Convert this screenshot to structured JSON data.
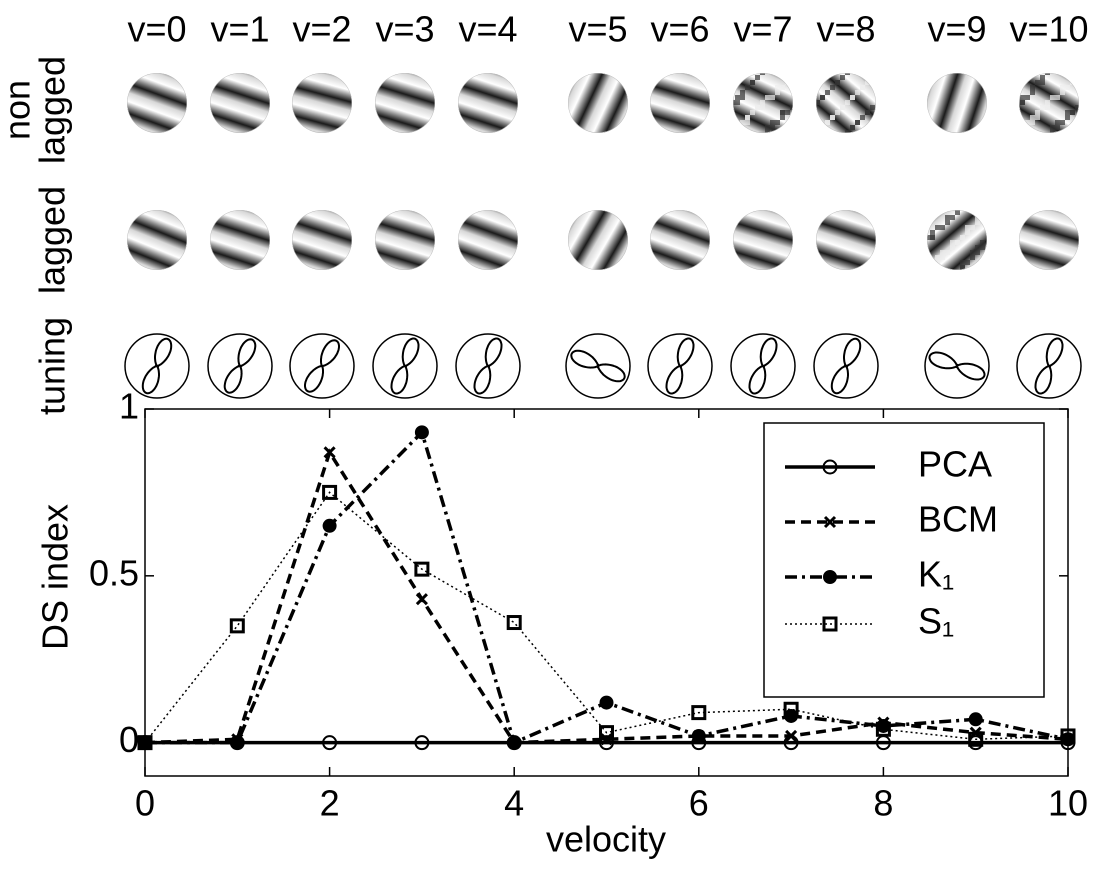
{
  "chart_data": {
    "type": "line",
    "column_labels": [
      "v=0",
      "v=1",
      "v=2",
      "v=3",
      "v=4",
      "v=5",
      "v=6",
      "v=7",
      "v=8",
      "v=9",
      "v=10"
    ],
    "row_labels": [
      [
        "non",
        "lagged"
      ],
      [
        "lagged"
      ],
      [
        "tuning"
      ]
    ],
    "xlabel": "velocity",
    "ylabel": "DS index",
    "x": [
      0,
      1,
      2,
      3,
      4,
      5,
      6,
      7,
      8,
      9,
      10
    ],
    "xlim": [
      0,
      10
    ],
    "xticks": [
      0,
      2,
      4,
      6,
      8,
      10
    ],
    "ylim": [
      -0.1,
      1
    ],
    "yticks": [
      0,
      0.5,
      1
    ],
    "legend": "upper right",
    "series": [
      {
        "name": "PCA",
        "color": "#000000",
        "style": "solid",
        "marker": "circle",
        "values": [
          0,
          0,
          0,
          0,
          0,
          0,
          0,
          0,
          0,
          0,
          0
        ]
      },
      {
        "name": "BCM",
        "color": "#000000",
        "style": "dashed",
        "marker": "x",
        "values": [
          0,
          0.01,
          0.87,
          0.43,
          0,
          0.01,
          0.02,
          0.02,
          0.06,
          0.03,
          0.01
        ]
      },
      {
        "name": "K₁",
        "color": "#000000",
        "style": "dashdot",
        "marker": "star",
        "values": [
          0,
          0,
          0.65,
          0.93,
          0,
          0.12,
          0.02,
          0.08,
          0.05,
          0.07,
          0.01
        ]
      },
      {
        "name": "S₁",
        "color": "#000000",
        "style": "dotted",
        "marker": "square",
        "values": [
          0,
          0.35,
          0.75,
          0.52,
          0.36,
          0.03,
          0.09,
          0.1,
          0.04,
          0.01,
          0.02
        ]
      }
    ]
  }
}
